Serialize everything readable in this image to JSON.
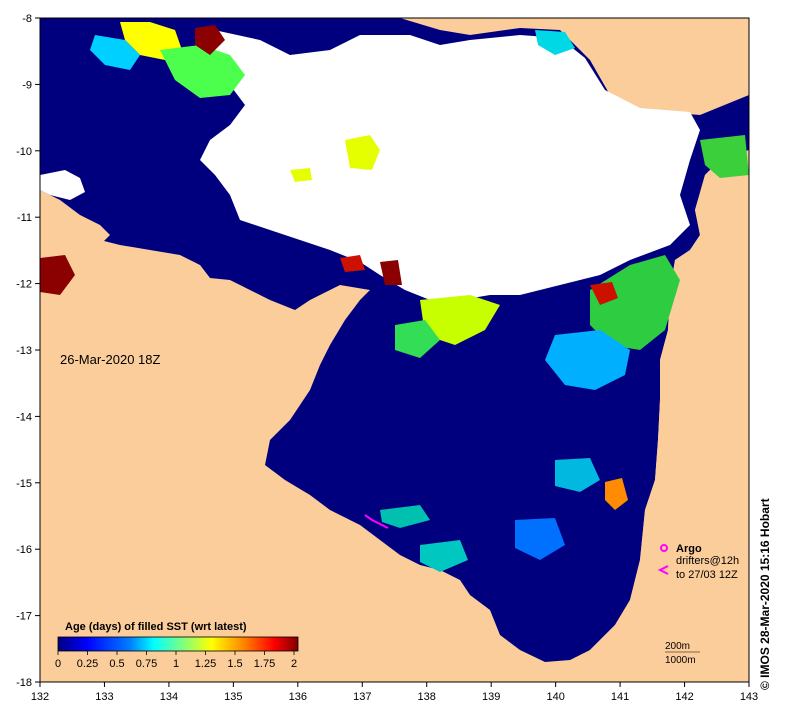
{
  "timestamp_label": "26-Mar-2020 18Z",
  "credit": "© IMOS 28-Mar-2020 15:16 Hobart",
  "colorbar": {
    "title": "Age (days) of filled SST (wrt latest)",
    "ticks": [
      "0",
      "0.25",
      "0.5",
      "0.75",
      "1",
      "1.25",
      "1.5",
      "1.75",
      "2"
    ],
    "range": [
      0,
      2
    ],
    "colors": [
      "#00007f",
      "#0000ff",
      "#007fff",
      "#00ffff",
      "#7fff7f",
      "#ffff00",
      "#ff7f00",
      "#ff0000",
      "#7f0000"
    ]
  },
  "legend": {
    "argo_label": "Argo",
    "drifters_label": "drifters@12h",
    "drifters_range": "to 27/03 12Z",
    "argo_color": "#ff00ff",
    "drifter_color": "#ff00ff",
    "iso_200": "200m",
    "iso_1000": "1000m"
  },
  "axes": {
    "lon_ticks": [
      "132",
      "133",
      "134",
      "135",
      "136",
      "137",
      "138",
      "139",
      "140",
      "141",
      "142",
      "143"
    ],
    "lat_ticks": [
      "-8",
      "-9",
      "-10",
      "-11",
      "-12",
      "-13",
      "-14",
      "-15",
      "-16",
      "-17",
      "-18"
    ],
    "lon_range": [
      132,
      143
    ],
    "lat_range": [
      -18,
      -8
    ]
  },
  "colors": {
    "land": "#fbcd9b",
    "cloud": "#ffffff",
    "sea_old": "#00007f"
  }
}
